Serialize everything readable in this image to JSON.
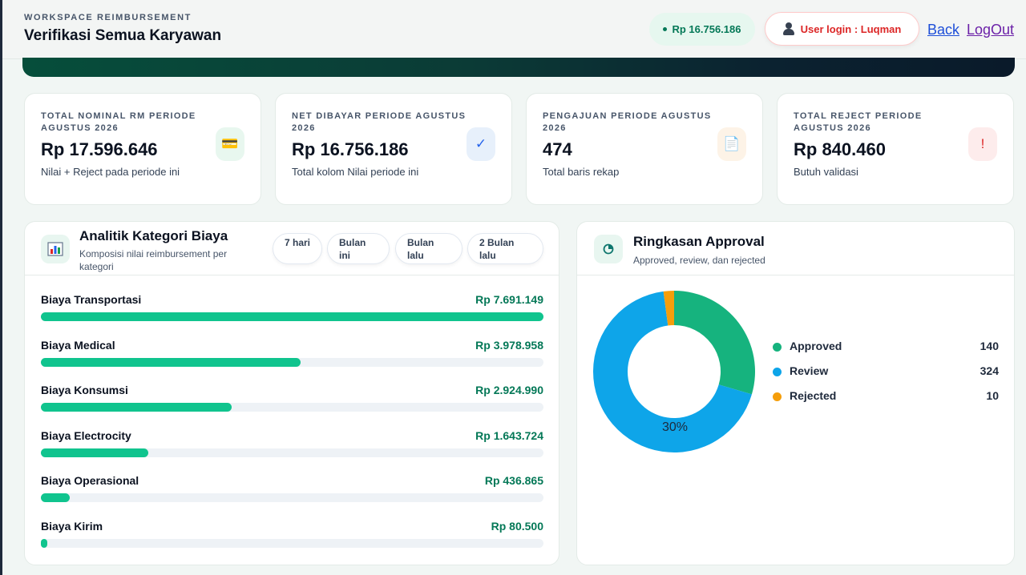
{
  "header": {
    "eyebrow": "WORKSPACE REIMBURSEMENT",
    "title": "Verifikasi Semua Karyawan",
    "balance": "Rp 16.756.186",
    "user_login": "User login : Luqman",
    "back_label": "Back",
    "logout_label": "LogOut"
  },
  "stats": [
    {
      "label": "TOTAL NOMINAL RM PERIODE AGUSTUS 2026",
      "value": "Rp 17.596.646",
      "sub": "Nilai + Reject pada periode ini",
      "icon": "card-icon",
      "glyph": "💳",
      "bg": "#e8f7ef",
      "fg": "#b45309"
    },
    {
      "label": "NET DIBAYAR PERIODE AGUSTUS 2026",
      "value": "Rp 16.756.186",
      "sub": "Total kolom Nilai periode ini",
      "icon": "check-icon",
      "glyph": "✓",
      "bg": "#e7f0fb",
      "fg": "#2563eb"
    },
    {
      "label": "PENGAJUAN PERIODE AGUSTUS 2026",
      "value": "474",
      "sub": "Total baris rekap",
      "icon": "document-icon",
      "glyph": "📄",
      "bg": "#fdf3e7",
      "fg": "#334155"
    },
    {
      "label": "TOTAL REJECT PERIODE AGUSTUS 2026",
      "value": "Rp 840.460",
      "sub": "Butuh validasi",
      "icon": "alert-icon",
      "glyph": "!",
      "bg": "#fdecec",
      "fg": "#dc2626"
    }
  ],
  "analytics": {
    "title": "Analitik Kategori Biaya",
    "subtitle": "Komposisi nilai reimbursement per kategori",
    "icon": "bar-chart-icon",
    "filters": [
      "7 hari",
      "Bulan ini",
      "Bulan lalu",
      "2 Bulan lalu"
    ],
    "categories": [
      {
        "name": "Biaya Transportasi",
        "value_label": "Rp 7.691.149",
        "amount": 7691149
      },
      {
        "name": "Biaya Medical",
        "value_label": "Rp 3.978.958",
        "amount": 3978958
      },
      {
        "name": "Biaya Konsumsi",
        "value_label": "Rp 2.924.990",
        "amount": 2924990
      },
      {
        "name": "Biaya Electrocity",
        "value_label": "Rp 1.643.724",
        "amount": 1643724
      },
      {
        "name": "Biaya Operasional",
        "value_label": "Rp 436.865",
        "amount": 436865
      },
      {
        "name": "Biaya Kirim",
        "value_label": "Rp 80.500",
        "amount": 80500
      }
    ]
  },
  "approval": {
    "title": "Ringkasan Approval",
    "subtitle": "Approved, review, dan rejected",
    "icon": "pie-chart-icon",
    "donut_label": "30%",
    "items": [
      {
        "name": "Approved",
        "count": 140,
        "color": "#16b37e"
      },
      {
        "name": "Review",
        "count": 324,
        "color": "#0ea5e9"
      },
      {
        "name": "Rejected",
        "count": 10,
        "color": "#f59e0b"
      }
    ]
  }
}
